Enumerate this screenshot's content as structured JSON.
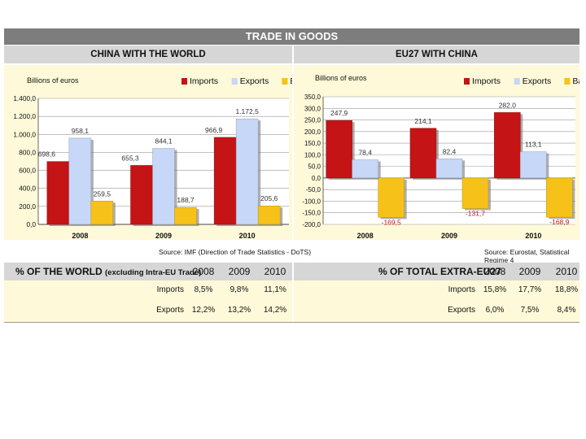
{
  "title": "TRADE IN GOODS",
  "left_subtitle": "CHINA WITH THE WORLD",
  "right_subtitle": "EU27 WITH CHINA",
  "colors": {
    "imports": "#c41416",
    "exports": "#c6d7f7",
    "balance": "#f6c21a",
    "title_bg": "#7d7d7d",
    "subhead_bg": "#d6d6d6",
    "panel_bg": "#fef9d9"
  },
  "chart_data": [
    {
      "type": "bar",
      "ylabel": "Billions of euros",
      "categories": [
        "2008",
        "2009",
        "2010"
      ],
      "series": [
        {
          "name": "Imports",
          "values": [
            698.6,
            655.3,
            966.9
          ],
          "labels": [
            "698,6",
            "655,3",
            "966,9"
          ]
        },
        {
          "name": "Exports",
          "values": [
            958.1,
            844.1,
            1172.5
          ],
          "labels": [
            "958,1",
            "844,1",
            "1.172,5"
          ]
        },
        {
          "name": "Balance",
          "values": [
            259.5,
            188.7,
            205.6
          ],
          "labels": [
            "259,5",
            "188,7",
            "205,6"
          ]
        }
      ],
      "ylim": [
        0,
        1400
      ],
      "yticks": [
        "0,0",
        "200,0",
        "400,0",
        "600,0",
        "800,0",
        "1.000,0",
        "1.200,0",
        "1.400,0"
      ],
      "ytick_values": [
        0,
        200,
        400,
        600,
        800,
        1000,
        1200,
        1400
      ],
      "legend": "top-right",
      "source": "Source: IMF (Direction of Trade Statistics - DoTS)"
    },
    {
      "type": "bar",
      "ylabel": "Billions of euros",
      "categories": [
        "2008",
        "2009",
        "2010"
      ],
      "series": [
        {
          "name": "Imports",
          "values": [
            247.9,
            214.1,
            282.0
          ],
          "labels": [
            "247,9",
            "214,1",
            "282,0"
          ]
        },
        {
          "name": "Exports",
          "values": [
            78.4,
            82.4,
            113.1
          ],
          "labels": [
            "78,4",
            "82,4",
            "113,1"
          ]
        },
        {
          "name": "Balance",
          "values": [
            -169.5,
            -131.7,
            -168.9
          ],
          "labels": [
            "-169,5",
            "-131,7",
            "-168,9"
          ]
        }
      ],
      "ylim": [
        -200,
        350
      ],
      "yticks": [
        "-200,0",
        "-150,0",
        "-100,0",
        "-50,0",
        "0,0",
        "50,0",
        "100,0",
        "150,0",
        "200,0",
        "250,0",
        "300,0",
        "350,0"
      ],
      "ytick_values": [
        -200,
        -150,
        -100,
        -50,
        0,
        50,
        100,
        150,
        200,
        250,
        300,
        350
      ],
      "legend": "top-right",
      "source": "Source: Eurostat, Statistical Regime 4"
    }
  ],
  "left_table": {
    "header_main": "% OF THE WORLD",
    "header_note": "(excluding Intra-EU Trade)",
    "years": [
      "2008",
      "2009",
      "2010"
    ],
    "rows": [
      {
        "label": "Imports",
        "values": [
          "8,5%",
          "9,8%",
          "11,1%"
        ]
      },
      {
        "label": "Exports",
        "values": [
          "12,2%",
          "13,2%",
          "14,2%"
        ]
      }
    ]
  },
  "right_table": {
    "header_main": "% OF TOTAL EXTRA-EU27",
    "years": [
      "2008",
      "2009",
      "2010"
    ],
    "rows": [
      {
        "label": "Imports",
        "values": [
          "15,8%",
          "17,7%",
          "18,8%"
        ]
      },
      {
        "label": "Exports",
        "values": [
          "6,0%",
          "7,5%",
          "8,4%"
        ]
      }
    ]
  }
}
